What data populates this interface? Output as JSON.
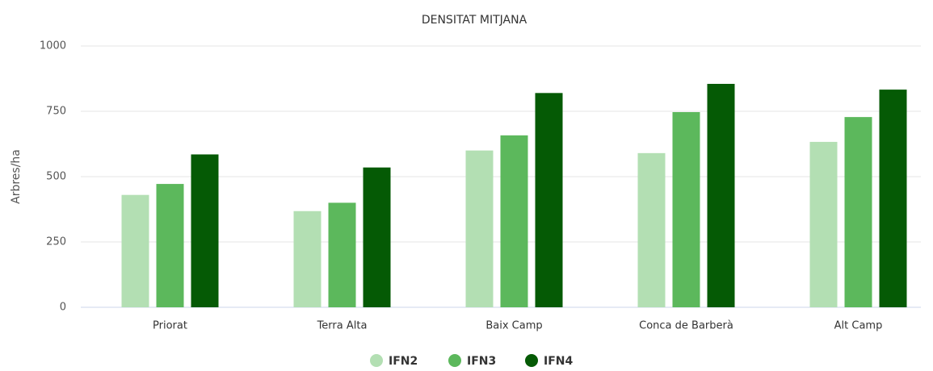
{
  "chart_data": {
    "type": "bar",
    "title": "DENSITAT MITJANA",
    "y_label": "Arbres/ha",
    "categories": [
      "Priorat",
      "Terra Alta",
      "Baix Camp",
      "Conca de Barberà",
      "Alt Camp"
    ],
    "series": [
      {
        "name": "IFN2",
        "color": "#b3dfb3",
        "values": [
          430,
          368,
          600,
          590,
          633
        ]
      },
      {
        "name": "IFN3",
        "color": "#5cb85c",
        "values": [
          472,
          400,
          658,
          747,
          728
        ]
      },
      {
        "name": "IFN4",
        "color": "#055a05",
        "values": [
          585,
          535,
          820,
          855,
          833
        ]
      }
    ],
    "ylim": [
      0,
      1000
    ],
    "yticks": [
      0,
      250,
      500,
      750,
      1000
    ],
    "grid": true,
    "legend": "bottom"
  }
}
